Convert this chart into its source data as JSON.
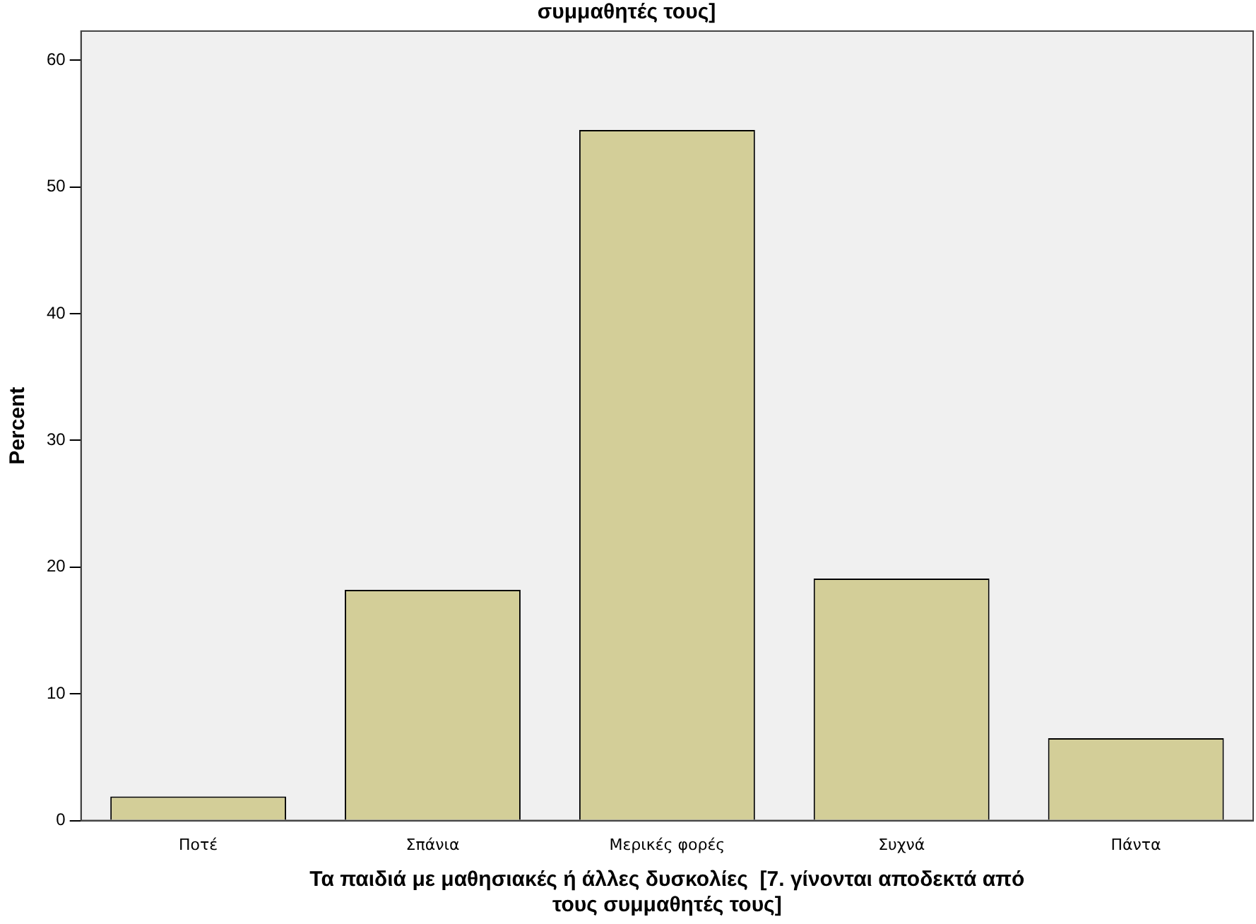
{
  "chart_data": {
    "type": "bar",
    "title": "συμμαθητές τους]",
    "xlabel": "Τα παιδιά με μαθησιακές ή άλλες δυσκολίες  [7. γίνονται αποδεκτά από τους συμμαθητές τους]",
    "ylabel": "Percent",
    "categories": [
      "Ποτέ",
      "Σπάνια",
      "Μερικές φορές",
      "Συχνά",
      "Πάντα"
    ],
    "values": [
      1.9,
      18.2,
      54.5,
      19.1,
      6.5
    ],
    "color": "#d3ce98",
    "ylim": [
      0,
      62.3
    ],
    "yticks": [
      0,
      10,
      20,
      30,
      40,
      50,
      60
    ],
    "grid": false,
    "legend": false
  }
}
